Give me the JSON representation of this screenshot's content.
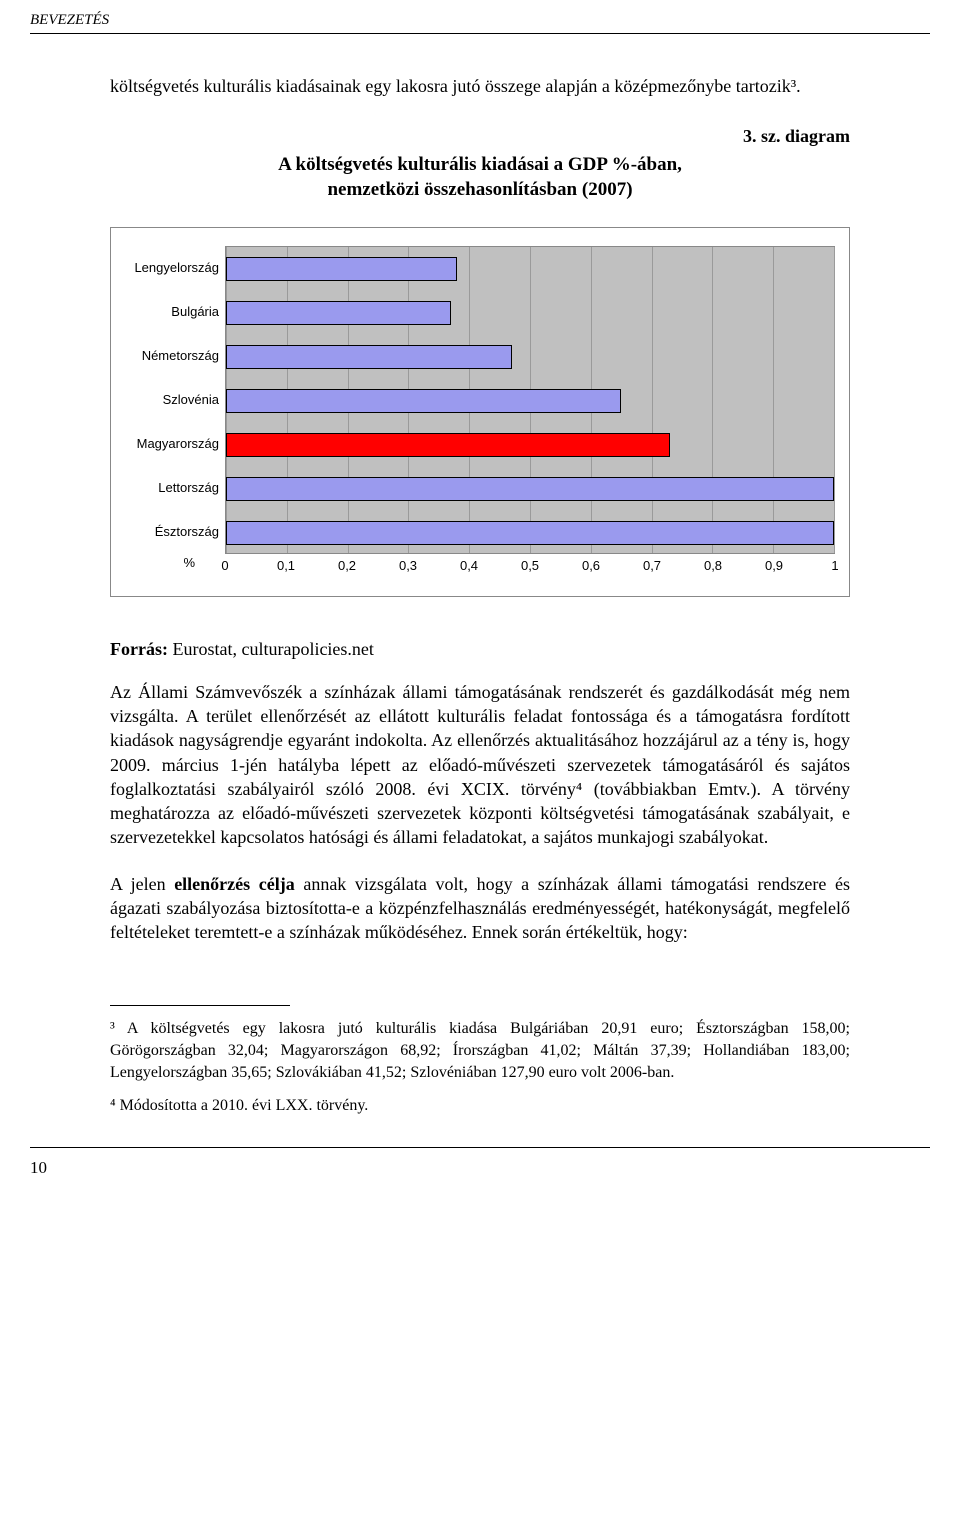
{
  "header": "BEVEZETÉS",
  "intro": "költségvetés kulturális kiadásainak egy lakosra jutó összege alapján a középmezőnybe tartozik³.",
  "diagram_label": "3. sz. diagram",
  "chart": {
    "title_line1": "A költségvetés kulturális kiadásai a GDP %-ában,",
    "title_line2": "nemzetközi összehasonlításban (2007)",
    "background_color": "#c0c0c0",
    "grid_color": "#9a9a9a",
    "bar_color": "#9a9aee",
    "highlight_color": "#ff0000",
    "xlim": [
      0,
      1
    ],
    "xticks": [
      "0",
      "0,1",
      "0,2",
      "0,3",
      "0,4",
      "0,5",
      "0,6",
      "0,7",
      "0,8",
      "0,9",
      "1"
    ],
    "y_unit": "%",
    "categories": [
      {
        "label": "Lengyelország",
        "value": 0.38,
        "highlight": false
      },
      {
        "label": "Bulgária",
        "value": 0.37,
        "highlight": false
      },
      {
        "label": "Németország",
        "value": 0.47,
        "highlight": false
      },
      {
        "label": "Szlovénia",
        "value": 0.65,
        "highlight": false
      },
      {
        "label": "Magyarország",
        "value": 0.73,
        "highlight": true
      },
      {
        "label": "Lettország",
        "value": 1.0,
        "highlight": false
      },
      {
        "label": "Észtország",
        "value": 1.0,
        "highlight": false
      }
    ]
  },
  "source_label": "Forrás:",
  "source_text": " Eurostat, culturapolicies.net",
  "para1": "Az Állami Számvevőszék a színházak állami támogatásának rendszerét és gazdálkodását még nem vizsgálta. A terület ellenőrzését az ellátott kulturális feladat fontossága és a támogatásra fordított kiadások nagyságrendje egyaránt indokolta. Az ellenőrzés aktualitásához hozzájárul az a tény is, hogy 2009. március 1-jén hatályba lépett az előadó-művészeti szervezetek támogatásáról és sajátos foglalkoztatási szabályairól szóló 2008. évi XCIX. törvény⁴ (továbbiakban Emtv.). A törvény meghatározza az előadó-művészeti szervezetek központi költségvetési támogatásának szabályait, e szervezetekkel kapcsolatos hatósági és állami feladatokat, a sajátos munkajogi szabályokat.",
  "para2_pre": "A jelen ",
  "para2_bold": "ellenőrzés célja",
  "para2_post": " annak vizsgálata volt, hogy a színházak állami támogatási rendszere és ágazati szabályozása biztosította-e a közpénzfelhasználás eredményességét, hatékonyságát, megfelelő feltételeket teremtett-e a színházak működéséhez. Ennek során értékeltük, hogy:",
  "footnote3": "³ A költségvetés egy lakosra jutó kulturális kiadása Bulgáriában 20,91 euro; Észtországban 158,00; Görögországban 32,04; Magyarországon 68,92; Írországban 41,02; Máltán 37,39; Hollandiában 183,00; Lengyelországban 35,65; Szlovákiában 41,52; Szlovéniában 127,90 euro volt 2006-ban.",
  "footnote4": "⁴ Módosította a 2010. évi LXX. törvény.",
  "page_number": "10"
}
